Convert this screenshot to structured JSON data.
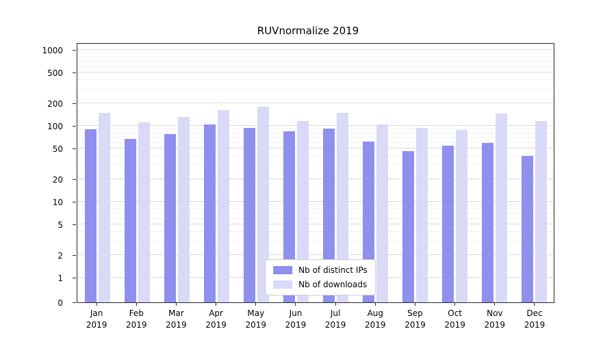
{
  "chart_data": {
    "type": "bar",
    "title": "RUVnormalize 2019",
    "categories": [
      "Jan 2019",
      "Feb 2019",
      "Mar 2019",
      "Apr 2019",
      "May 2019",
      "Jun 2019",
      "Jul 2019",
      "Aug 2019",
      "Sep 2019",
      "Oct 2019",
      "Nov 2019",
      "Dec 2019"
    ],
    "series": [
      {
        "name": "Nb of distinct IPs",
        "color": "#8f8fee",
        "values": [
          90,
          68,
          78,
          105,
          95,
          85,
          93,
          62,
          46,
          55,
          60,
          40
        ]
      },
      {
        "name": "Nb of downloads",
        "color": "#d9d9f8",
        "values": [
          150,
          110,
          130,
          160,
          180,
          115,
          150,
          105,
          95,
          88,
          145,
          115
        ]
      }
    ],
    "yscale": "symlog",
    "yticks": [
      0,
      1,
      2,
      5,
      10,
      20,
      50,
      100,
      200,
      500,
      1000
    ],
    "ylim": [
      0,
      1258
    ],
    "xlabel": "",
    "ylabel": "",
    "grid": true,
    "legend_position": "lower center"
  }
}
